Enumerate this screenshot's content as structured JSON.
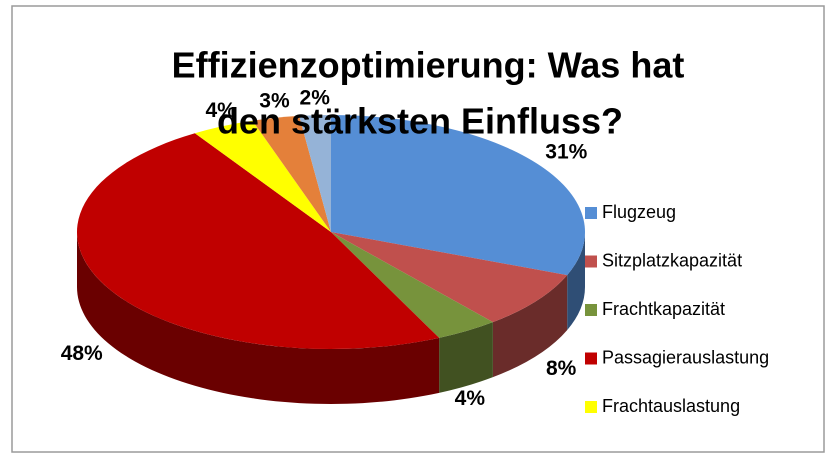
{
  "chart_data": {
    "type": "pie3d",
    "title": [
      "Effizienzoptimierung: Was hat",
      "den stärksten Einfluss?"
    ],
    "categories": [
      "Flugzeug",
      "Sitzplatzkapazität",
      "Frachtkapazität",
      "Passagierauslastung",
      "Frachtauslastung",
      null,
      null
    ],
    "values": [
      31,
      8,
      4,
      48,
      4,
      3,
      2
    ],
    "value_labels": [
      "31%",
      "8%",
      "4%",
      "48%",
      "4%",
      "3%",
      "2%"
    ],
    "colors": [
      "#558ed5",
      "#c0504d",
      "#77933c",
      "#c00000",
      "#ffff00",
      "#e4803a",
      "#95b3d7"
    ],
    "legend": "right"
  }
}
